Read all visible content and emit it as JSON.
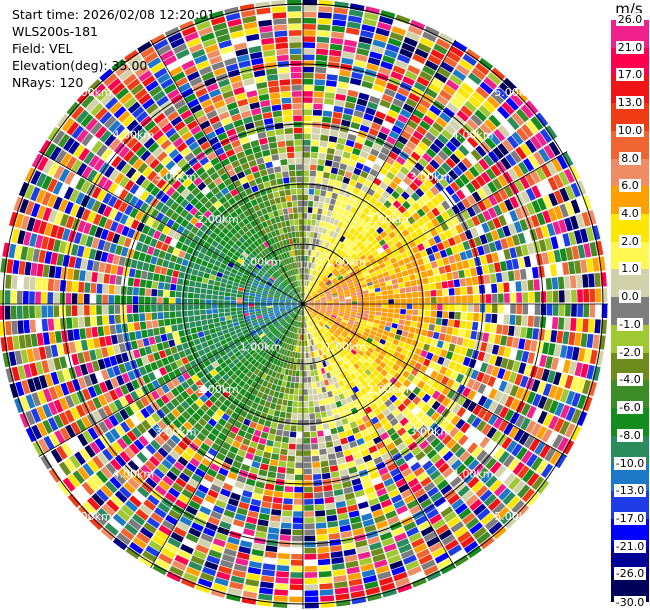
{
  "header": {
    "start_time": "Start time: 2026/02/08 12:20:01",
    "site": "WLS200s-181",
    "field": "Field: VEL",
    "elevation": "Elevation(deg): 35.00",
    "nrays": "NRays: 120"
  },
  "colorbar": {
    "unit": "m/s",
    "levels": [
      "26.0",
      "21.0",
      "17.0",
      "13.0",
      "10.0",
      "8.0",
      "6.0",
      "4.0",
      "2.0",
      "1.0",
      "0.0",
      "-1.0",
      "-2.0",
      "-4.0",
      "-6.0",
      "-8.0",
      "-10.0",
      "-13.0",
      "-17.0",
      "-21.0",
      "-26.0"
    ],
    "bottom_label": "-30.0",
    "colors": [
      "#f0208c",
      "#ff0050",
      "#f01414",
      "#f03c14",
      "#f06432",
      "#f08c64",
      "#ffa000",
      "#ffe600",
      "#fff850",
      "#d2d2aa",
      "#7d7d7d",
      "#a0c832",
      "#6e8c1e",
      "#3c8c28",
      "#148c1e",
      "#2a8c5a",
      "#1e78c8",
      "#1e3ce6",
      "#0000ff",
      "#000096",
      "#00005a"
    ]
  },
  "range_rings": {
    "labels": [
      "1.00km",
      "2.00km",
      "3.00km",
      "4.00km",
      "5.00km"
    ]
  }
}
